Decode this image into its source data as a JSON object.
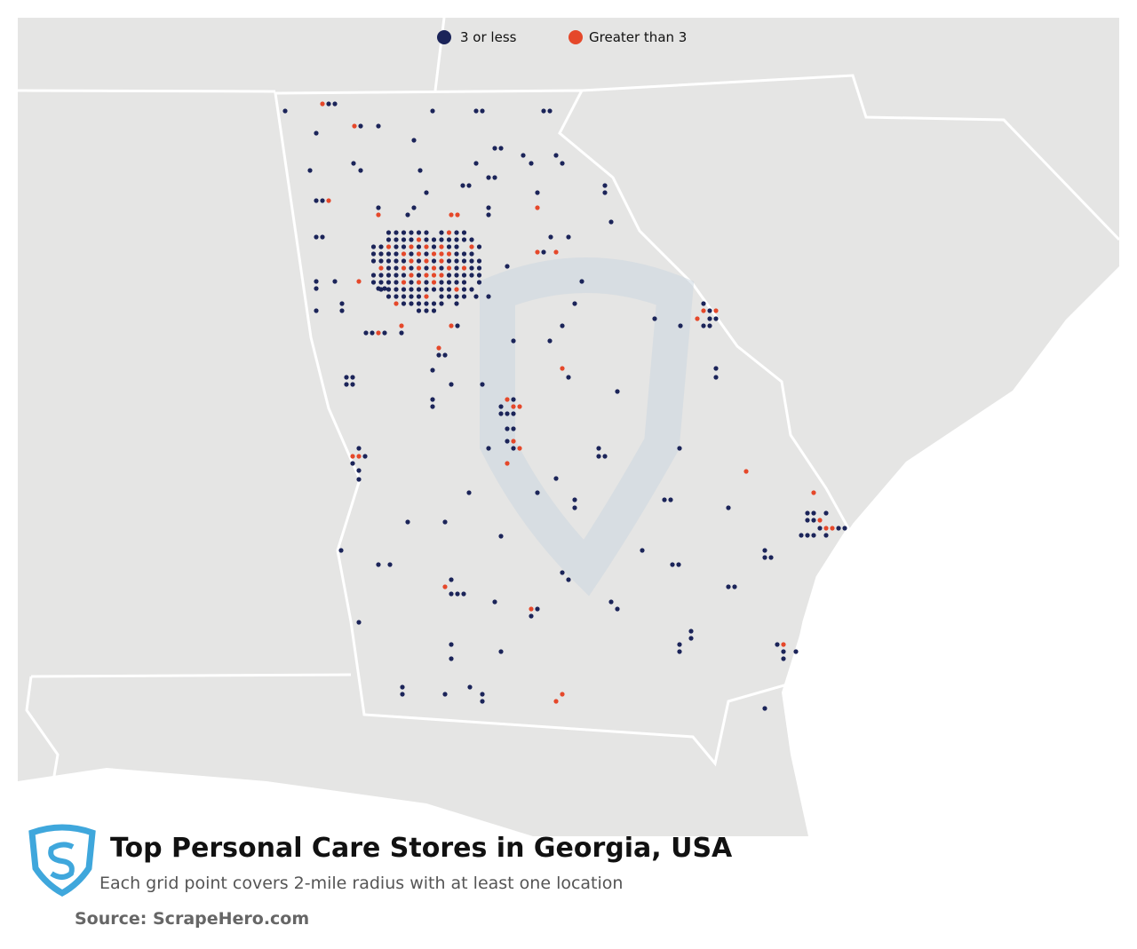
{
  "legend": {
    "items": [
      {
        "label": "3 or less",
        "color": "#1b2459"
      },
      {
        "label": "Greater than 3",
        "color": "#e5482a"
      }
    ]
  },
  "header": {
    "title": "Top Personal Care Stores in Georgia, USA",
    "subtitle": "Each grid point covers 2-mile radius with at least one location"
  },
  "source": "Source: ScrapeHero.com"
}
